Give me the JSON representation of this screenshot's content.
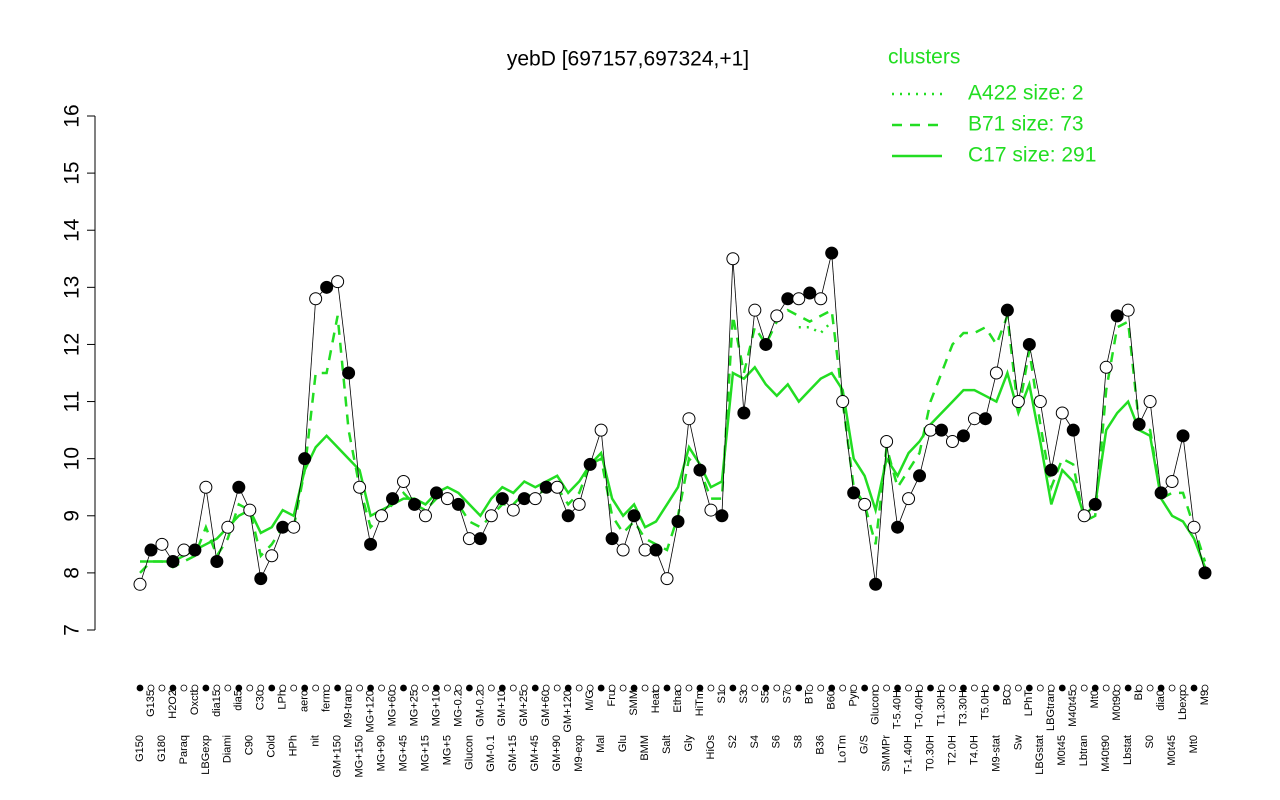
{
  "chart_data": {
    "type": "line",
    "title": "yebD [697157,697324,+1]",
    "legend_title": "clusters",
    "legend_position": "top-right",
    "point_color": "#000000",
    "ylim": [
      7,
      16
    ],
    "yticks": [
      7,
      8,
      9,
      10,
      11,
      12,
      13,
      14,
      15,
      16
    ],
    "categories": [
      "G150",
      "G135",
      "G180",
      "H2O2",
      "Paraq",
      "Oxctl",
      "LBGexp",
      "dia15",
      "Diami",
      "dia5",
      "C90",
      "C30",
      "Cold",
      "LPh",
      "HPh",
      "aero",
      "nit",
      "ferm",
      "GM+150",
      "M9-tran",
      "MG+150",
      "MG+120",
      "MG+90",
      "MG+60",
      "MG+45",
      "MG+25",
      "MG+15",
      "MG+10",
      "MG+5",
      "MG-0.2",
      "Glucon",
      "GM-0.2",
      "GM-0.1",
      "GM+10",
      "GM+15",
      "GM+25",
      "GM+45",
      "GM+60",
      "GM+90",
      "GM+120",
      "M9-exp",
      "M/G",
      "Mal",
      "Fru",
      "Glu",
      "SMM",
      "BMM",
      "Heat",
      "Salt",
      "Etha",
      "Gly",
      "HiTm",
      "HiOs",
      "S1",
      "S2",
      "S3",
      "S4",
      "S5",
      "S6",
      "S7",
      "S8",
      "BT",
      "B36",
      "B60",
      "LoTm",
      "Pyr",
      "G/S",
      "Glucon",
      "SMMPr",
      "T-5.40H",
      "T-1.40H",
      "T-0.40H",
      "T0.30H",
      "T1.30H",
      "T2.0H",
      "T3.30H",
      "T4.0H",
      "T5.0H",
      "M9-stat",
      "BC",
      "Sw",
      "LPhT",
      "LBGstat",
      "LBGtran",
      "M0t45",
      "M40t45",
      "Lbtran",
      "Mt0",
      "M40t90",
      "M0t90",
      "Lbstat",
      "BI",
      "S0",
      "dia0",
      "M0t45",
      "Lbexp",
      "Mt0",
      "M9"
    ],
    "values": [
      7.8,
      8.4,
      8.5,
      8.2,
      8.4,
      8.4,
      9.5,
      8.2,
      8.8,
      9.5,
      9.1,
      7.9,
      8.3,
      8.8,
      8.8,
      10.0,
      12.8,
      13.0,
      13.1,
      11.5,
      9.5,
      8.5,
      9.0,
      9.3,
      9.6,
      9.2,
      9.0,
      9.4,
      9.3,
      9.2,
      8.6,
      8.6,
      9.0,
      9.3,
      9.1,
      9.3,
      9.3,
      9.5,
      9.5,
      9.0,
      9.2,
      9.9,
      10.5,
      8.6,
      8.4,
      9.0,
      8.4,
      8.4,
      7.9,
      8.9,
      10.7,
      9.8,
      9.1,
      9.0,
      13.5,
      10.8,
      12.6,
      12.0,
      12.5,
      12.8,
      12.8,
      12.9,
      12.8,
      13.6,
      11.0,
      9.4,
      9.2,
      7.8,
      10.3,
      8.8,
      9.3,
      9.7,
      10.5,
      10.5,
      10.3,
      10.4,
      10.7,
      10.7,
      11.5,
      12.6,
      11.0,
      12.0,
      11.0,
      9.8,
      10.8,
      10.5,
      9.0,
      9.2,
      11.6,
      12.5,
      12.6,
      10.6,
      11.0,
      9.4,
      9.6,
      10.4,
      8.8,
      8.0
    ],
    "series": [
      {
        "name": "A422 size: 2",
        "color": "#22dd22",
        "dash": "dotted",
        "values": [
          null,
          null,
          null,
          null,
          null,
          null,
          null,
          null,
          null,
          null,
          null,
          null,
          null,
          null,
          null,
          null,
          null,
          null,
          null,
          null,
          null,
          null,
          null,
          null,
          null,
          null,
          null,
          null,
          null,
          null,
          null,
          null,
          null,
          null,
          null,
          null,
          null,
          null,
          null,
          null,
          null,
          null,
          null,
          null,
          null,
          null,
          null,
          null,
          null,
          null,
          null,
          null,
          null,
          null,
          null,
          null,
          null,
          null,
          null,
          null,
          12.3,
          12.3,
          12.2,
          12.4,
          null,
          null,
          null,
          null,
          null,
          null,
          null,
          null,
          null,
          null,
          null,
          null,
          null,
          null,
          null,
          null,
          null,
          null,
          null,
          null,
          null,
          null,
          null,
          null,
          null,
          null,
          null,
          null,
          null,
          null,
          null,
          null,
          null,
          null
        ]
      },
      {
        "name": "B71 size: 73",
        "color": "#22dd22",
        "dash": "dashed",
        "values": [
          8.0,
          8.2,
          8.2,
          8.1,
          8.2,
          8.3,
          8.8,
          8.3,
          8.6,
          9.2,
          9.1,
          8.3,
          8.5,
          8.8,
          8.8,
          9.8,
          11.5,
          11.5,
          12.5,
          10.5,
          9.5,
          8.8,
          9.0,
          9.2,
          9.4,
          9.2,
          9.1,
          9.3,
          9.3,
          9.2,
          8.9,
          8.8,
          9.0,
          9.2,
          9.2,
          9.4,
          9.3,
          9.5,
          9.5,
          9.2,
          9.4,
          9.9,
          10.0,
          9.0,
          8.7,
          8.9,
          8.6,
          8.5,
          8.4,
          9.0,
          10.0,
          9.8,
          9.3,
          9.3,
          12.5,
          11.5,
          12.3,
          12.0,
          12.4,
          12.6,
          12.5,
          12.4,
          12.5,
          12.6,
          11.0,
          9.5,
          9.2,
          8.5,
          10.2,
          9.5,
          9.8,
          10.1,
          11.0,
          11.5,
          12.0,
          12.2,
          12.2,
          12.3,
          12.0,
          12.5,
          10.8,
          11.9,
          10.6,
          9.5,
          10.0,
          9.9,
          8.9,
          9.0,
          11.2,
          12.3,
          12.4,
          10.6,
          10.5,
          9.3,
          9.4,
          9.4,
          8.8,
          8.2
        ]
      },
      {
        "name": "C17 size: 291",
        "color": "#22dd22",
        "dash": "solid",
        "values": [
          8.2,
          8.2,
          8.2,
          8.2,
          8.3,
          8.4,
          8.5,
          8.6,
          8.8,
          9.0,
          9.1,
          8.7,
          8.8,
          9.1,
          9.0,
          9.8,
          10.2,
          10.4,
          10.2,
          10.0,
          9.8,
          9.0,
          9.1,
          9.2,
          9.3,
          9.3,
          9.2,
          9.4,
          9.5,
          9.4,
          9.2,
          9.0,
          9.3,
          9.5,
          9.4,
          9.6,
          9.5,
          9.6,
          9.7,
          9.4,
          9.6,
          9.9,
          10.1,
          9.3,
          9.0,
          9.2,
          8.8,
          8.9,
          9.2,
          9.5,
          10.2,
          9.9,
          9.5,
          9.6,
          11.5,
          11.4,
          11.6,
          11.3,
          11.1,
          11.3,
          11.0,
          11.2,
          11.4,
          11.5,
          11.2,
          10.0,
          9.7,
          9.1,
          10.0,
          9.7,
          10.1,
          10.3,
          10.6,
          10.8,
          11.0,
          11.2,
          11.2,
          11.1,
          11.0,
          11.5,
          10.8,
          11.3,
          10.3,
          9.2,
          9.8,
          9.6,
          9.0,
          9.2,
          10.5,
          10.8,
          11.0,
          10.5,
          10.4,
          9.3,
          9.0,
          8.9,
          8.6,
          8.1
        ]
      }
    ]
  }
}
